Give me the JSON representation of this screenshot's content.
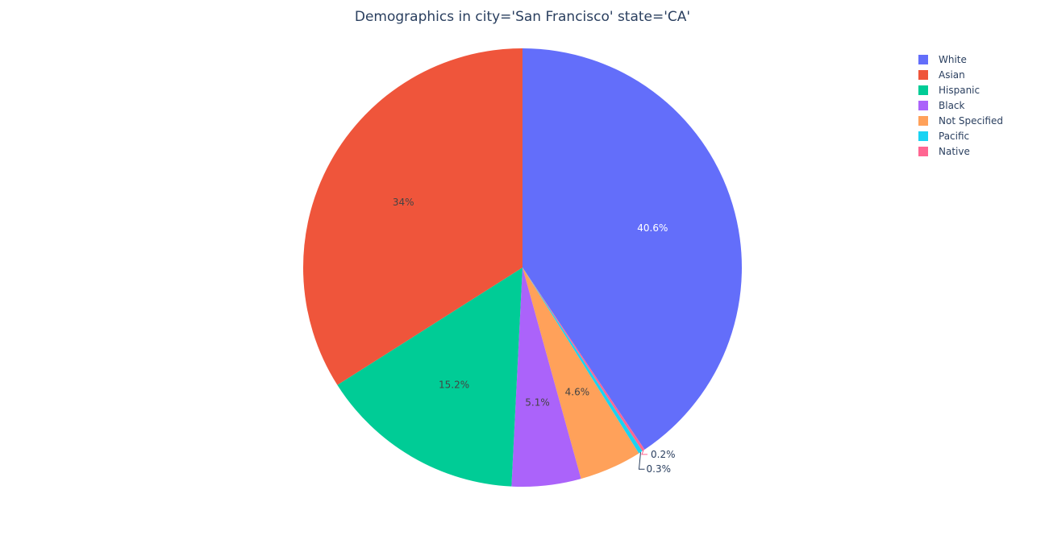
{
  "chart_data": {
    "type": "pie",
    "title": "Demographics in city='San Francisco' state='CA'",
    "legend_position": "top-right",
    "direction": "clockwise",
    "start_angle_deg": 90,
    "slices": [
      {
        "name": "White",
        "value": 40.6,
        "label": "40.6%",
        "color": "#636efa",
        "label_color": "#ffffff"
      },
      {
        "name": "Native",
        "value": 0.2,
        "label": "0.2%",
        "color": "#ff6692",
        "label_color": "#2a3f5f"
      },
      {
        "name": "Pacific",
        "value": 0.3,
        "label": "0.3%",
        "color": "#19d3f3",
        "label_color": "#2a3f5f"
      },
      {
        "name": "Not Specified",
        "value": 4.6,
        "label": "4.6%",
        "color": "#ffa15a",
        "label_color": "#444444"
      },
      {
        "name": "Black",
        "value": 5.1,
        "label": "5.1%",
        "color": "#ab63fa",
        "label_color": "#444444"
      },
      {
        "name": "Hispanic",
        "value": 15.2,
        "label": "15.2%",
        "color": "#00cc96",
        "label_color": "#444444"
      },
      {
        "name": "Asian",
        "value": 34.0,
        "label": "34%",
        "color": "#ef553b",
        "label_color": "#444444"
      }
    ],
    "legend_order": [
      "White",
      "Asian",
      "Hispanic",
      "Black",
      "Not Specified",
      "Pacific",
      "Native"
    ]
  }
}
